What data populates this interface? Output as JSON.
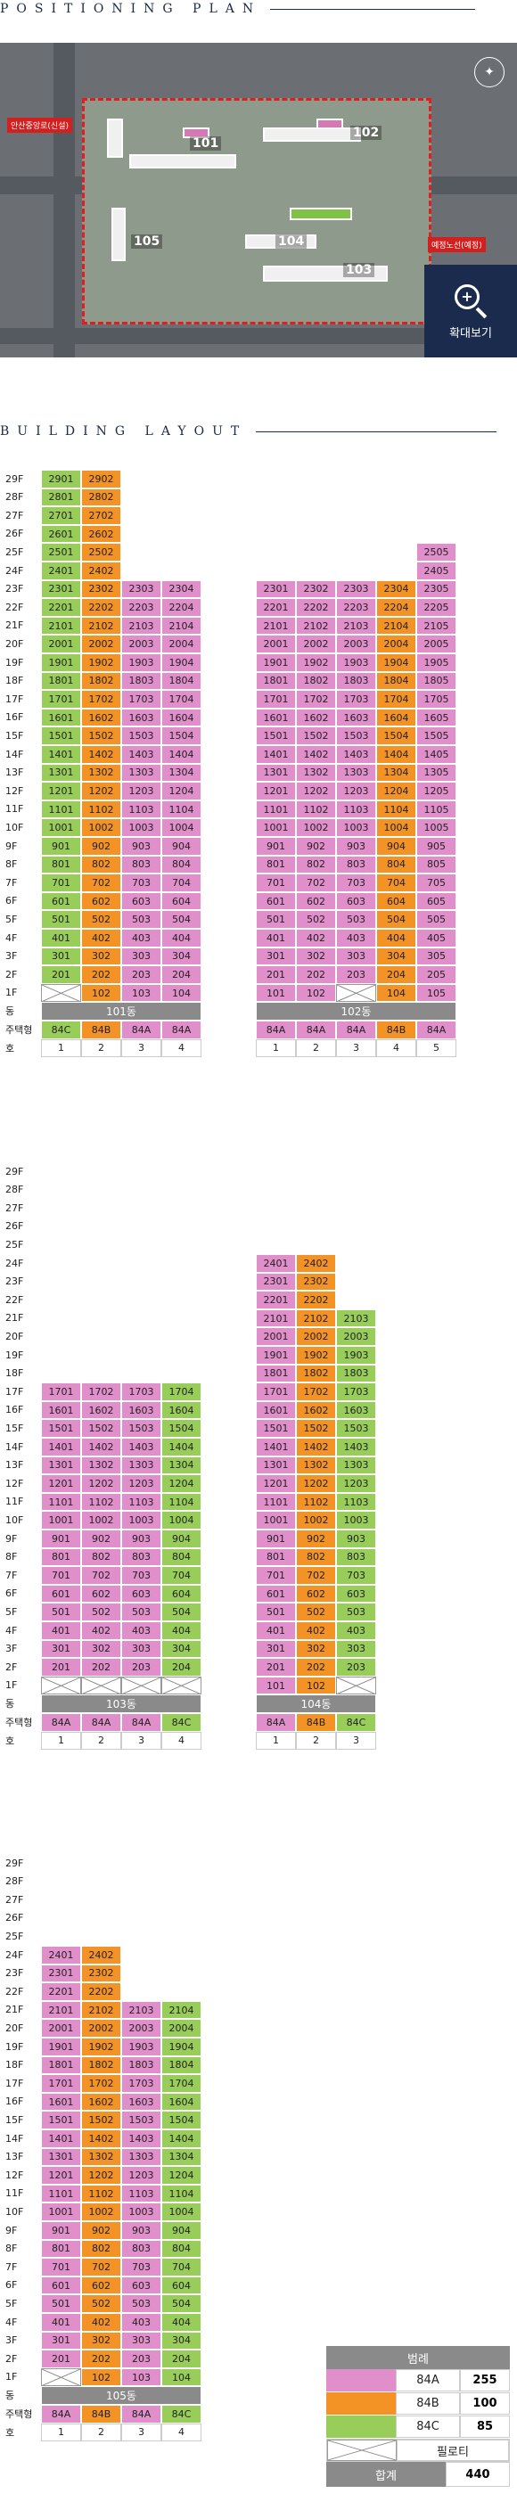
{
  "titles": {
    "positioning": "POSITIONING PLAN",
    "building": "BUILDING LAYOUT"
  },
  "plan": {
    "labels": {
      "b101": "101",
      "b102": "102",
      "b103": "103",
      "b104": "104",
      "b105": "105"
    },
    "road_left": "안산중앙로(신설)",
    "road_right": "예정노선(예정)",
    "zoom": "확대보기"
  },
  "colors": {
    "84A": "#e08fcb",
    "84B": "#f39225",
    "84C": "#98cd5a"
  },
  "row_labels": {
    "dong": "동",
    "type": "주택형",
    "ho": "호"
  },
  "floors": [
    "29F",
    "28F",
    "27F",
    "26F",
    "25F",
    "24F",
    "23F",
    "22F",
    "21F",
    "20F",
    "19F",
    "18F",
    "17F",
    "16F",
    "15F",
    "14F",
    "13F",
    "12F",
    "11F",
    "10F",
    "9F",
    "8F",
    "7F",
    "6F",
    "5F",
    "4F",
    "3F",
    "2F",
    "1F"
  ],
  "blocks": [
    {
      "buildings": [
        {
          "name": "101동",
          "types": [
            "84C",
            "84B",
            "84A",
            "84A"
          ],
          "ho": [
            "1",
            "2",
            "3",
            "4"
          ],
          "tops": [
            29,
            29,
            23,
            23
          ],
          "pil": [
            1
          ]
        },
        {
          "name": "102동",
          "types": [
            "84A",
            "84A",
            "84A",
            "84B",
            "84A"
          ],
          "ho": [
            "1",
            "2",
            "3",
            "4",
            "5"
          ],
          "tops": [
            23,
            23,
            23,
            23,
            25
          ],
          "pil": [
            3
          ]
        }
      ]
    },
    {
      "buildings": [
        {
          "name": "103동",
          "types": [
            "84A",
            "84A",
            "84A",
            "84C"
          ],
          "ho": [
            "1",
            "2",
            "3",
            "4"
          ],
          "tops": [
            17,
            17,
            17,
            17
          ],
          "pil": [
            1,
            2,
            3,
            4
          ]
        },
        {
          "name": "104동",
          "types": [
            "84A",
            "84B",
            "84C"
          ],
          "ho": [
            "1",
            "2",
            "3"
          ],
          "tops": [
            24,
            24,
            21
          ],
          "pil": [
            3
          ]
        }
      ]
    },
    {
      "buildings": [
        {
          "name": "105동",
          "types": [
            "84A",
            "84B",
            "84A",
            "84C"
          ],
          "ho": [
            "1",
            "2",
            "3",
            "4"
          ],
          "tops": [
            24,
            24,
            21,
            21
          ],
          "pil": [
            1
          ]
        }
      ]
    }
  ],
  "legend": {
    "title": "범례",
    "rows": [
      {
        "type": "84A",
        "count": "255"
      },
      {
        "type": "84B",
        "count": "100"
      },
      {
        "type": "84C",
        "count": "85"
      }
    ],
    "piloti": "필로티",
    "total_label": "합계",
    "total": "440"
  }
}
